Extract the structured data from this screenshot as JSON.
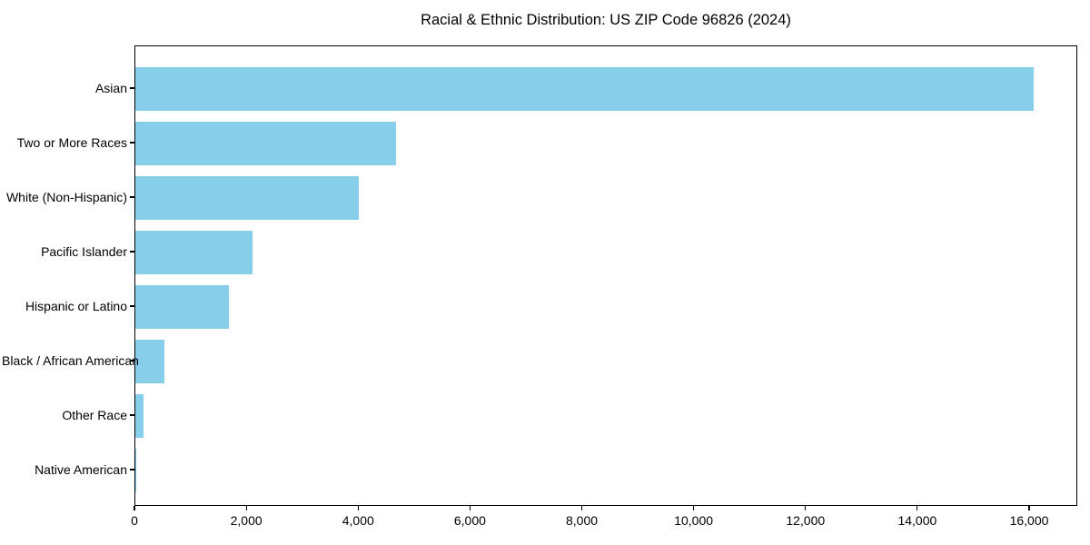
{
  "chart_data": {
    "type": "bar",
    "orientation": "horizontal",
    "title": "Racial & Ethnic Distribution: US ZIP Code 96826 (2024)",
    "xlabel": "",
    "ylabel": "",
    "categories": [
      "Asian",
      "Two or More Races",
      "White (Non-Hispanic)",
      "Pacific Islander",
      "Hispanic or Latino",
      "Black / African American",
      "Other Race",
      "Native American"
    ],
    "values": [
      16070,
      4660,
      4000,
      2100,
      1670,
      520,
      150,
      10
    ],
    "xlim": [
      0,
      16860
    ],
    "x_ticks": [
      0,
      2000,
      4000,
      6000,
      8000,
      10000,
      12000,
      14000,
      16000
    ],
    "x_tick_labels": [
      "0",
      "2,000",
      "4,000",
      "6,000",
      "8,000",
      "10,000",
      "12,000",
      "14,000",
      "16,000"
    ],
    "bar_color": "#87CEEB",
    "axis_color": "#000000",
    "grid": false,
    "legend": false
  }
}
